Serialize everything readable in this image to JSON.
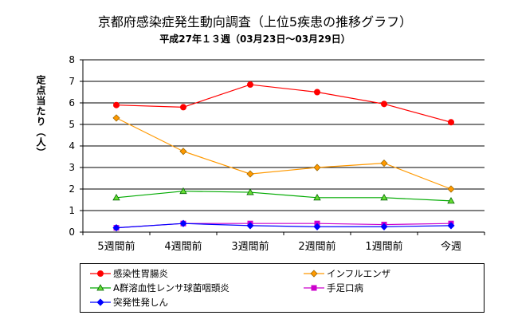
{
  "title": "京都府感染症発生動向調査（上位5疾患の推移グラフ）",
  "subtitle": "平成27年１３週（03月23日～03月29日）",
  "chart_data": {
    "type": "line",
    "categories": [
      "5週間前",
      "4週間前",
      "3週間前",
      "2週間前",
      "1週間前",
      "今週"
    ],
    "ylabel": "定点当たり（人）",
    "ylim": [
      0,
      8
    ],
    "yticks": [
      "0",
      "1",
      "2",
      "3",
      "4",
      "5",
      "6",
      "7",
      "8"
    ],
    "grid": true,
    "legend_position": "bottom",
    "series": [
      {
        "name": "感染性胃腸炎",
        "color": "#ff0000",
        "marker": "circle",
        "values": [
          5.9,
          5.8,
          6.85,
          6.5,
          5.95,
          5.1
        ]
      },
      {
        "name": "インフルエンザ",
        "color": "#ff9900",
        "marker": "diamond",
        "values": [
          5.3,
          3.75,
          2.7,
          3.0,
          3.2,
          2.0
        ]
      },
      {
        "name": "A群溶血性レンサ球菌咽頭炎",
        "color": "#00aa00",
        "marker": "triangle",
        "values": [
          1.6,
          1.9,
          1.85,
          1.6,
          1.6,
          1.45
        ]
      },
      {
        "name": "手足口病",
        "color": "#cc00cc",
        "marker": "square",
        "values": [
          0.2,
          0.4,
          0.4,
          0.4,
          0.35,
          0.4
        ]
      },
      {
        "name": "突発性発しん",
        "color": "#0000ff",
        "marker": "diamond",
        "values": [
          0.2,
          0.4,
          0.3,
          0.25,
          0.25,
          0.3
        ]
      }
    ]
  }
}
